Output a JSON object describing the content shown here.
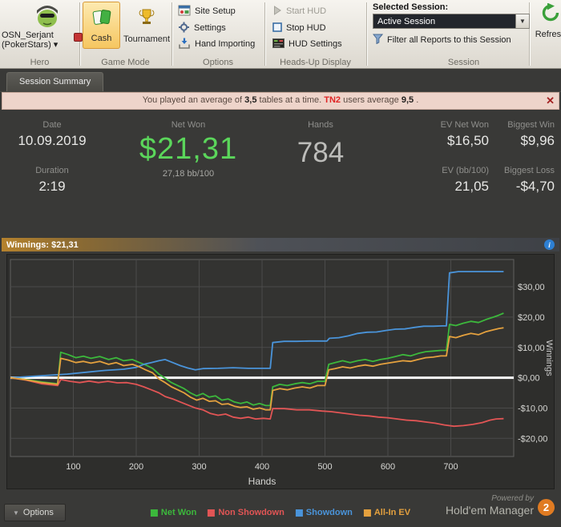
{
  "icons": {
    "close": "✕",
    "dropdown": "▼",
    "info": "i",
    "options_caret": "▼"
  },
  "toolbar": {
    "hero": {
      "line1": "OSN_Serjant",
      "line2": "(PokerStars) ▾",
      "group": "Hero"
    },
    "game_mode": {
      "cash": "Cash",
      "tournament": "Tournament",
      "group": "Game Mode"
    },
    "options": {
      "site_setup": "Site Setup",
      "settings": "Settings",
      "hand_importing": "Hand Importing",
      "group": "Options"
    },
    "hud": {
      "start": "Start HUD",
      "stop": "Stop HUD",
      "settings": "HUD Settings",
      "group": "Heads-Up Display"
    },
    "session": {
      "label": "Selected Session:",
      "value": "Active Session",
      "filter": "Filter all Reports to this Session",
      "refresh": "Refresh",
      "group": "Session"
    }
  },
  "tabs": {
    "session_summary": "Session Summary"
  },
  "notice": {
    "part1": "You played an average of",
    "tables": "3,5",
    "part2": "tables at a time.",
    "brand": "TN2",
    "part3": "users average",
    "avg": "9,5",
    "part4": "."
  },
  "stats": {
    "date_label": "Date",
    "date": "10.09.2019",
    "duration_label": "Duration",
    "duration": "2:19",
    "net_won_label": "Net Won",
    "net_won": "$21,31",
    "bb100": "27,18 bb/100",
    "hands_label": "Hands",
    "hands": "784",
    "ev_net_won_label": "EV Net Won",
    "ev_net_won": "$16,50",
    "ev_bb_label": "EV (bb/100)",
    "ev_bb": "21,05",
    "biggest_win_label": "Biggest Win",
    "biggest_win": "$9,96",
    "biggest_loss_label": "Biggest Loss",
    "biggest_loss": "-$4,70"
  },
  "winnings_bar": {
    "label": "Winnings: $21,31"
  },
  "chart_data": {
    "type": "line",
    "title": "",
    "xlabel": "Hands",
    "ylabel": "Winnings",
    "xlim": [
      0,
      800
    ],
    "ylim": [
      -26,
      39
    ],
    "x_ticks": [
      100,
      200,
      300,
      400,
      500,
      600,
      700
    ],
    "y_ticks": [
      {
        "v": 30,
        "label": "$30,00"
      },
      {
        "v": 20,
        "label": "$20,00"
      },
      {
        "v": 10,
        "label": "$10,00"
      },
      {
        "v": 0,
        "label": "$0,00"
      },
      {
        "v": -10,
        "label": "-$10,00"
      },
      {
        "v": -20,
        "label": "-$20,00"
      }
    ],
    "zero_line": 0,
    "grid": true,
    "legend_position": "bottom",
    "series": [
      {
        "name": "Net Won",
        "color": "#3cb83c",
        "points": [
          [
            0,
            0
          ],
          [
            25,
            -0.6
          ],
          [
            50,
            -1.4
          ],
          [
            75,
            -2
          ],
          [
            80,
            8.4
          ],
          [
            92,
            7.6
          ],
          [
            104,
            6.6
          ],
          [
            116,
            7.1
          ],
          [
            128,
            6.4
          ],
          [
            142,
            7
          ],
          [
            156,
            6
          ],
          [
            168,
            6.6
          ],
          [
            180,
            5.6
          ],
          [
            194,
            6
          ],
          [
            205,
            5
          ],
          [
            215,
            4.2
          ],
          [
            226,
            3.1
          ],
          [
            236,
            1.2
          ],
          [
            246,
            -0.2
          ],
          [
            256,
            -1.6
          ],
          [
            266,
            -2.6
          ],
          [
            276,
            -3.6
          ],
          [
            286,
            -5
          ],
          [
            296,
            -6
          ],
          [
            306,
            -5.2
          ],
          [
            316,
            -6.4
          ],
          [
            326,
            -6
          ],
          [
            336,
            -7.4
          ],
          [
            346,
            -7
          ],
          [
            356,
            -8
          ],
          [
            366,
            -8.5
          ],
          [
            376,
            -8
          ],
          [
            386,
            -9
          ],
          [
            396,
            -8.5
          ],
          [
            406,
            -9.2
          ],
          [
            413,
            -9.2
          ],
          [
            417,
            -3
          ],
          [
            428,
            -2.2
          ],
          [
            440,
            -2.6
          ],
          [
            452,
            -2
          ],
          [
            464,
            -1.6
          ],
          [
            476,
            -2
          ],
          [
            488,
            -1.2
          ],
          [
            500,
            -1.2
          ],
          [
            506,
            4.4
          ],
          [
            516,
            5
          ],
          [
            528,
            5.6
          ],
          [
            540,
            5
          ],
          [
            552,
            5.6
          ],
          [
            564,
            6
          ],
          [
            576,
            5.4
          ],
          [
            588,
            6
          ],
          [
            600,
            6.4
          ],
          [
            612,
            7
          ],
          [
            624,
            7.6
          ],
          [
            636,
            7.2
          ],
          [
            648,
            8
          ],
          [
            660,
            8.6
          ],
          [
            672,
            8.8
          ],
          [
            684,
            9
          ],
          [
            693,
            9
          ],
          [
            698,
            17.6
          ],
          [
            708,
            17.2
          ],
          [
            720,
            18
          ],
          [
            732,
            18.6
          ],
          [
            744,
            18.2
          ],
          [
            756,
            19.2
          ],
          [
            768,
            20
          ],
          [
            776,
            20.6
          ],
          [
            784,
            21.3
          ]
        ]
      },
      {
        "name": "Non Showdown",
        "color": "#e25555",
        "points": [
          [
            0,
            0
          ],
          [
            25,
            -0.8
          ],
          [
            50,
            -2
          ],
          [
            75,
            -2.6
          ],
          [
            80,
            -0.6
          ],
          [
            95,
            -1.2
          ],
          [
            110,
            -1.6
          ],
          [
            125,
            -1.1
          ],
          [
            140,
            -1.6
          ],
          [
            155,
            -1.2
          ],
          [
            170,
            -1.7
          ],
          [
            185,
            -1.6
          ],
          [
            200,
            -2.2
          ],
          [
            212,
            -3
          ],
          [
            224,
            -4
          ],
          [
            236,
            -5
          ],
          [
            246,
            -6.2
          ],
          [
            258,
            -7
          ],
          [
            270,
            -8
          ],
          [
            282,
            -9
          ],
          [
            294,
            -10
          ],
          [
            306,
            -10.6
          ],
          [
            318,
            -11.8
          ],
          [
            330,
            -12.4
          ],
          [
            342,
            -12
          ],
          [
            354,
            -13
          ],
          [
            366,
            -13.4
          ],
          [
            378,
            -13
          ],
          [
            390,
            -13.6
          ],
          [
            402,
            -13.4
          ],
          [
            413,
            -13.6
          ],
          [
            417,
            -10.2
          ],
          [
            435,
            -10.2
          ],
          [
            455,
            -10.6
          ],
          [
            475,
            -10.6
          ],
          [
            495,
            -11
          ],
          [
            510,
            -11.2
          ],
          [
            525,
            -11.6
          ],
          [
            540,
            -12
          ],
          [
            555,
            -12.4
          ],
          [
            570,
            -12.6
          ],
          [
            585,
            -13
          ],
          [
            600,
            -13.2
          ],
          [
            615,
            -13.6
          ],
          [
            630,
            -14
          ],
          [
            645,
            -14.2
          ],
          [
            660,
            -14.6
          ],
          [
            675,
            -15
          ],
          [
            690,
            -15.6
          ],
          [
            705,
            -16
          ],
          [
            720,
            -15.8
          ],
          [
            735,
            -15.4
          ],
          [
            750,
            -14.8
          ],
          [
            762,
            -14
          ],
          [
            772,
            -13.6
          ],
          [
            784,
            -13.5
          ]
        ]
      },
      {
        "name": "Showdown",
        "color": "#4a94da",
        "points": [
          [
            0,
            0
          ],
          [
            30,
            0.4
          ],
          [
            60,
            0.8
          ],
          [
            90,
            1.2
          ],
          [
            120,
            1.8
          ],
          [
            150,
            2.4
          ],
          [
            180,
            2.8
          ],
          [
            200,
            3.4
          ],
          [
            212,
            4.4
          ],
          [
            224,
            5
          ],
          [
            236,
            5.6
          ],
          [
            246,
            6
          ],
          [
            258,
            5
          ],
          [
            270,
            4
          ],
          [
            282,
            3.2
          ],
          [
            294,
            2.6
          ],
          [
            306,
            3
          ],
          [
            330,
            3.1
          ],
          [
            354,
            3.3
          ],
          [
            378,
            3.1
          ],
          [
            402,
            3.1
          ],
          [
            413,
            3.1
          ],
          [
            417,
            11.6
          ],
          [
            435,
            12
          ],
          [
            455,
            12
          ],
          [
            475,
            12.1
          ],
          [
            495,
            12.1
          ],
          [
            503,
            12.1
          ],
          [
            507,
            13
          ],
          [
            522,
            13.2
          ],
          [
            537,
            13.8
          ],
          [
            552,
            14.6
          ],
          [
            567,
            15
          ],
          [
            582,
            15.1
          ],
          [
            597,
            15.6
          ],
          [
            612,
            16
          ],
          [
            627,
            16.1
          ],
          [
            642,
            16.6
          ],
          [
            657,
            17
          ],
          [
            672,
            17
          ],
          [
            687,
            17.1
          ],
          [
            693,
            17.1
          ],
          [
            698,
            34.6
          ],
          [
            712,
            35
          ],
          [
            730,
            35
          ],
          [
            750,
            35
          ],
          [
            768,
            35
          ],
          [
            784,
            35
          ]
        ]
      },
      {
        "name": "All-In EV",
        "color": "#e5a13e",
        "points": [
          [
            0,
            0
          ],
          [
            25,
            -0.7
          ],
          [
            50,
            -1.6
          ],
          [
            75,
            -2.2
          ],
          [
            80,
            6.4
          ],
          [
            92,
            5.8
          ],
          [
            104,
            5
          ],
          [
            116,
            5.4
          ],
          [
            128,
            4.8
          ],
          [
            142,
            5.4
          ],
          [
            156,
            4.4
          ],
          [
            168,
            5
          ],
          [
            180,
            4
          ],
          [
            194,
            4.4
          ],
          [
            205,
            3.6
          ],
          [
            215,
            2.6
          ],
          [
            226,
            1.6
          ],
          [
            236,
            -0.4
          ],
          [
            246,
            -1.6
          ],
          [
            256,
            -3
          ],
          [
            266,
            -4
          ],
          [
            276,
            -5
          ],
          [
            286,
            -6.4
          ],
          [
            296,
            -7.4
          ],
          [
            306,
            -6.8
          ],
          [
            316,
            -7.8
          ],
          [
            326,
            -7.6
          ],
          [
            336,
            -8.8
          ],
          [
            346,
            -8.6
          ],
          [
            356,
            -9.4
          ],
          [
            366,
            -9.8
          ],
          [
            376,
            -9.6
          ],
          [
            386,
            -10.4
          ],
          [
            396,
            -10
          ],
          [
            406,
            -10.6
          ],
          [
            413,
            -10.6
          ],
          [
            417,
            -4.2
          ],
          [
            428,
            -3.6
          ],
          [
            440,
            -4
          ],
          [
            452,
            -3.4
          ],
          [
            464,
            -3
          ],
          [
            476,
            -3.4
          ],
          [
            488,
            -2.6
          ],
          [
            500,
            -2.6
          ],
          [
            506,
            2.6
          ],
          [
            516,
            3
          ],
          [
            528,
            3.6
          ],
          [
            540,
            3.2
          ],
          [
            552,
            3.8
          ],
          [
            564,
            4.2
          ],
          [
            576,
            3.8
          ],
          [
            588,
            4.4
          ],
          [
            600,
            4.8
          ],
          [
            612,
            5.2
          ],
          [
            624,
            5.6
          ],
          [
            636,
            5.4
          ],
          [
            648,
            6
          ],
          [
            660,
            6.6
          ],
          [
            672,
            6.8
          ],
          [
            684,
            7.2
          ],
          [
            693,
            7.2
          ],
          [
            698,
            13.6
          ],
          [
            708,
            13.2
          ],
          [
            720,
            14
          ],
          [
            732,
            14.6
          ],
          [
            744,
            14.2
          ],
          [
            756,
            15.2
          ],
          [
            768,
            15.8
          ],
          [
            776,
            16.2
          ],
          [
            784,
            16.5
          ]
        ]
      }
    ]
  },
  "footer": {
    "options": "Options",
    "powered_by": "Powered by",
    "brand": "Hold'em Manager",
    "logo": "2"
  }
}
